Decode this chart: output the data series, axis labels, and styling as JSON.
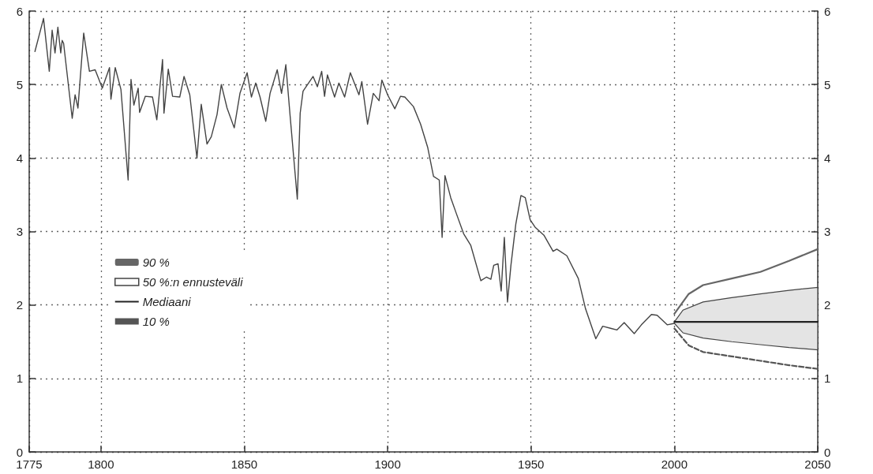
{
  "chart_data": {
    "type": "line",
    "xlim": [
      1775,
      2050
    ],
    "xticks": [
      1775,
      1800,
      1850,
      1900,
      1950,
      2000,
      2050
    ],
    "ylim": [
      0,
      6
    ],
    "yticks": [
      0,
      1,
      2,
      3,
      4,
      5,
      6
    ],
    "y2lim": [
      0,
      6
    ],
    "y2ticks": [
      0,
      1,
      2,
      3,
      4,
      5,
      6
    ],
    "grid": true,
    "legend": "left",
    "marker": "none",
    "line_style": "solid",
    "series": [
      {
        "color": "#444444",
        "x": [
          1777,
          1780,
          1782,
          1783,
          1784,
          1785,
          1786,
          1786.5,
          1787,
          1790,
          1791,
          1792,
          1794,
          1796,
          1798,
          1799,
          1800.5,
          1803,
          1803.5,
          1805,
          1807,
          1809.5,
          1810.5,
          1811.5,
          1813,
          1813.5,
          1815.5,
          1818,
          1819.5,
          1821.5,
          1822,
          1823.5,
          1825,
          1827.5,
          1829,
          1831,
          1833.5,
          1835,
          1837,
          1838.5,
          1840.5,
          1842,
          1844,
          1846.5,
          1848.5,
          1851,
          1852.5,
          1854,
          1855.5,
          1857.5,
          1859,
          1861.5,
          1863,
          1864.5,
          1866,
          1868.5,
          1869.5,
          1870.5,
          1874,
          1875.5,
          1877,
          1878,
          1879,
          1881.5,
          1883,
          1885,
          1887,
          1890,
          1891,
          1893,
          1895,
          1897,
          1898,
          1900,
          1902.5,
          1904.5,
          1906,
          1909,
          1911.5,
          1914,
          1916,
          1918,
          1919,
          1920,
          1922,
          1924,
          1926.5,
          1929,
          1932.5,
          1934.5,
          1936,
          1937,
          1938.5,
          1939.6,
          1940.7,
          1941.8,
          1943,
          1944.7,
          1946.5,
          1948,
          1949.7,
          1951.4,
          1954.5,
          1957.7,
          1959,
          1962.5,
          1966.5,
          1969,
          1972.6,
          1975,
          1978,
          1980,
          1982.5,
          1986,
          1988.5,
          1992,
          1994,
          1997.5,
          2000
        ],
        "values": [
          5.45,
          5.9,
          5.18,
          5.74,
          5.43,
          5.78,
          5.43,
          5.6,
          5.56,
          4.54,
          4.86,
          4.68,
          5.7,
          5.18,
          5.2,
          5.1,
          4.95,
          5.23,
          4.8,
          5.23,
          4.93,
          3.7,
          5.07,
          4.72,
          4.95,
          4.62,
          4.84,
          4.83,
          4.52,
          5.34,
          4.61,
          5.21,
          4.84,
          4.83,
          5.11,
          4.86,
          4.0,
          4.73,
          4.19,
          4.29,
          4.59,
          5.0,
          4.68,
          4.41,
          4.88,
          5.16,
          4.83,
          5.02,
          4.83,
          4.5,
          4.88,
          5.2,
          4.88,
          5.27,
          4.57,
          3.44,
          4.61,
          4.91,
          5.11,
          4.97,
          5.18,
          4.84,
          5.13,
          4.83,
          5.02,
          4.83,
          5.16,
          4.86,
          5.04,
          4.46,
          4.88,
          4.78,
          5.06,
          4.86,
          4.67,
          4.84,
          4.83,
          4.7,
          4.46,
          4.14,
          3.75,
          3.7,
          2.92,
          3.76,
          3.46,
          3.24,
          2.97,
          2.81,
          2.33,
          2.38,
          2.35,
          2.54,
          2.56,
          2.19,
          2.92,
          2.04,
          2.54,
          3.1,
          3.49,
          3.46,
          3.16,
          3.06,
          2.95,
          2.73,
          2.76,
          2.67,
          2.36,
          1.95,
          1.54,
          1.71,
          1.68,
          1.66,
          1.76,
          1.61,
          1.73,
          1.87,
          1.86,
          1.73,
          1.75
        ]
      },
      {
        "name": "90 %",
        "color": "#666666",
        "x": [
          2000,
          2005,
          2010,
          2020,
          2030,
          2040,
          2050
        ],
        "values": [
          1.88,
          2.15,
          2.27,
          2.36,
          2.45,
          2.6,
          2.76
        ]
      },
      {
        "name": "50 %:n ennusteväli",
        "color": "#444444",
        "x": [
          2000,
          2003,
          2010,
          2020,
          2030,
          2040,
          2050
        ],
        "values": [
          null,
          null,
          null,
          null,
          null,
          null,
          null
        ],
        "upper": [
          1.77,
          1.93,
          2.04,
          2.1,
          2.15,
          2.2,
          2.24
        ],
        "lower": [
          1.75,
          1.62,
          1.55,
          1.5,
          1.46,
          1.42,
          1.39
        ]
      },
      {
        "name": "Mediaani",
        "color": "#222222",
        "x": [
          2000,
          2050
        ],
        "values": [
          1.77,
          1.77
        ]
      },
      {
        "name": "10 %",
        "color": "#555555",
        "line_style": "dashed",
        "x": [
          2000,
          2005,
          2010,
          2020,
          2030,
          2040,
          2050
        ],
        "values": [
          1.68,
          1.45,
          1.36,
          1.3,
          1.24,
          1.18,
          1.13
        ]
      }
    ]
  }
}
